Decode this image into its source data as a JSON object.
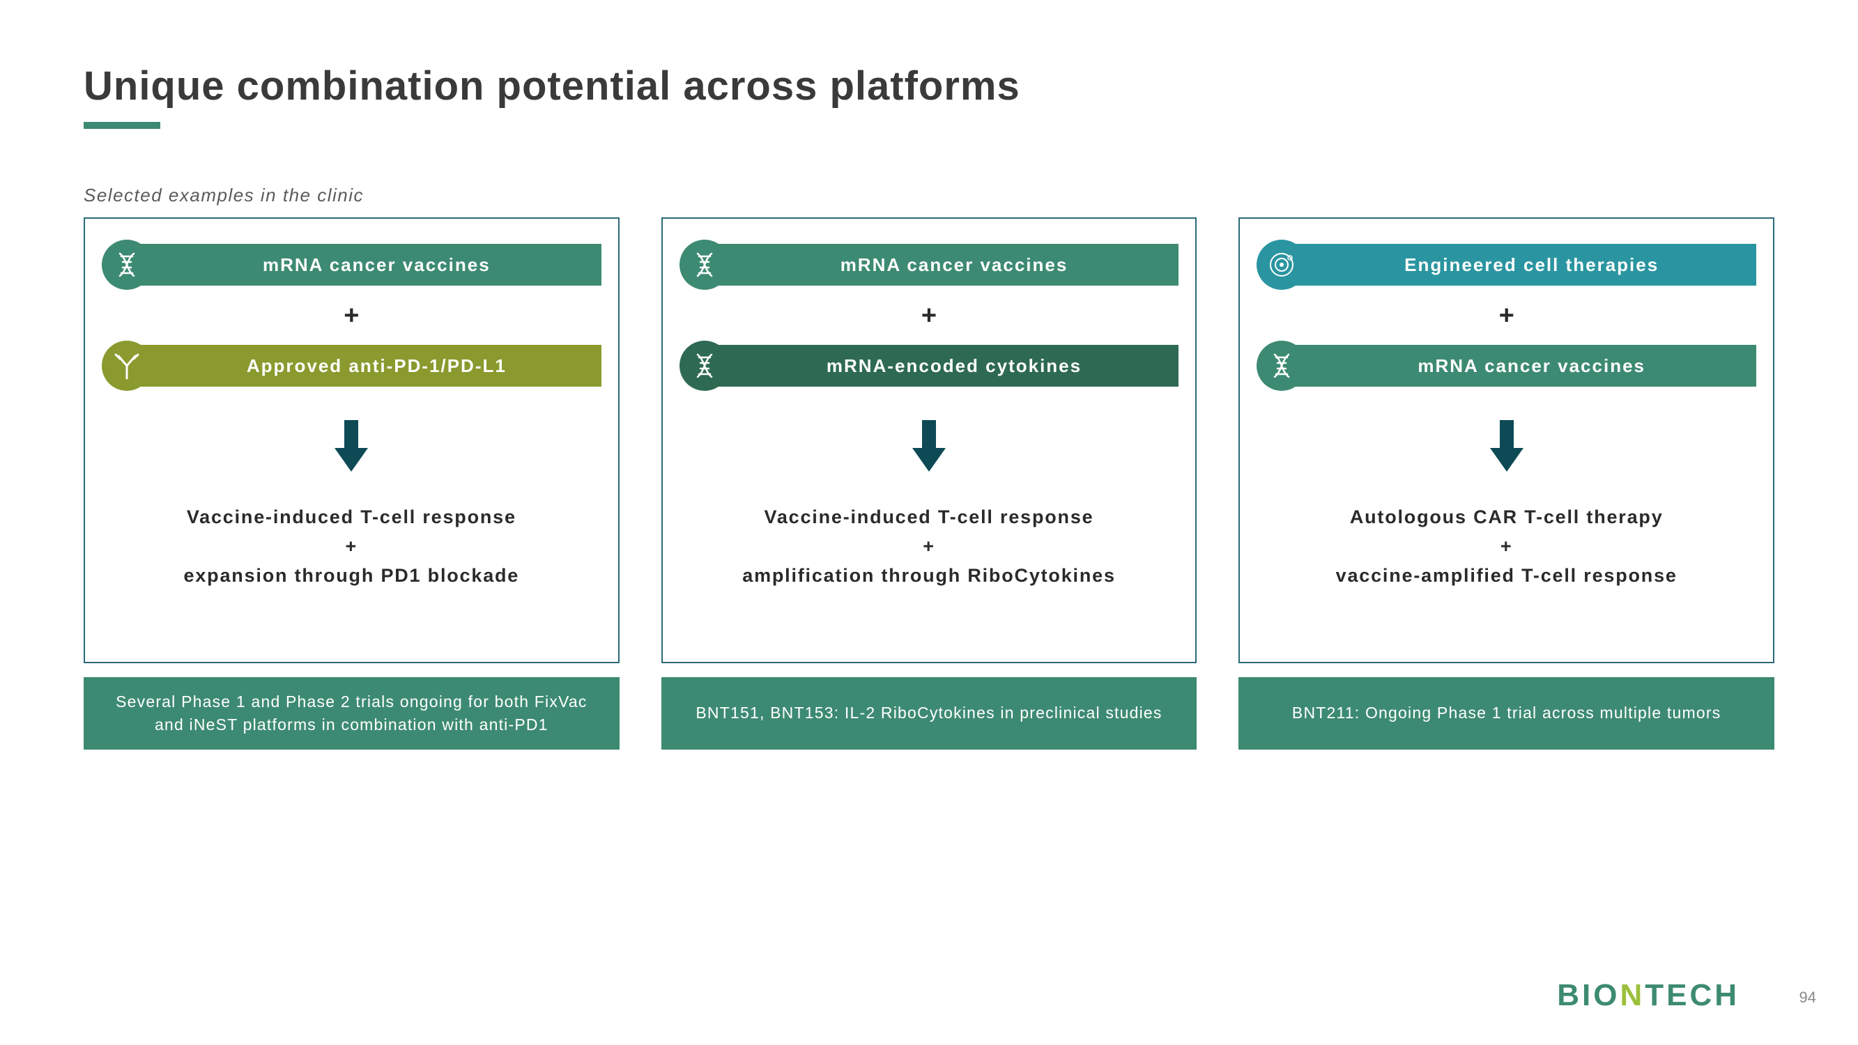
{
  "title": "Unique combination potential across platforms",
  "subtitle": "Selected examples in the clinic",
  "page_number": "94",
  "logo": {
    "part1": "BIO",
    "part2": "N",
    "part3": "TECH"
  },
  "colors": {
    "teal_border": "#2a6a78",
    "green_fill": "#3d8a72",
    "title_text": "#3a3a3a",
    "arrow": "#0d4a56"
  },
  "columns": [
    {
      "top_icon": "helix",
      "top_icon_bg": "#3d8a72",
      "top_label": "mRNA cancer vaccines",
      "top_bg": "#3d8a72",
      "bottom_icon": "antibody",
      "bottom_icon_bg": "#8a9a2e",
      "bottom_label": "Approved anti-PD-1/PD-L1",
      "bottom_bg": "#8a9a2e",
      "outcome_line1": "Vaccine-induced T-cell response",
      "outcome_plus": "+",
      "outcome_line2": "expansion through PD1 blockade",
      "footnote": "Several Phase 1 and Phase 2 trials ongoing for both FixVac and iNeST platforms in combination with anti-PD1"
    },
    {
      "top_icon": "helix",
      "top_icon_bg": "#3d8a72",
      "top_label": "mRNA cancer vaccines",
      "top_bg": "#3d8a72",
      "bottom_icon": "helix",
      "bottom_icon_bg": "#2e6a52",
      "bottom_label": "mRNA-encoded cytokines",
      "bottom_bg": "#2e6a52",
      "outcome_line1": "Vaccine-induced T-cell response",
      "outcome_plus": "+",
      "outcome_line2": "amplification through RiboCytokines",
      "footnote": "BNT151, BNT153: IL-2 RiboCytokines in preclinical studies"
    },
    {
      "top_icon": "cell",
      "top_icon_bg": "#2a95a0",
      "top_label": "Engineered cell therapies",
      "top_bg": "#2a95a0",
      "bottom_icon": "helix",
      "bottom_icon_bg": "#3d8a72",
      "bottom_label": "mRNA cancer vaccines",
      "bottom_bg": "#3d8a72",
      "outcome_line1": "Autologous CAR T-cell therapy",
      "outcome_plus": "+",
      "outcome_line2": "vaccine-amplified T-cell response",
      "footnote": "BNT211: Ongoing Phase 1 trial across multiple tumors"
    }
  ]
}
